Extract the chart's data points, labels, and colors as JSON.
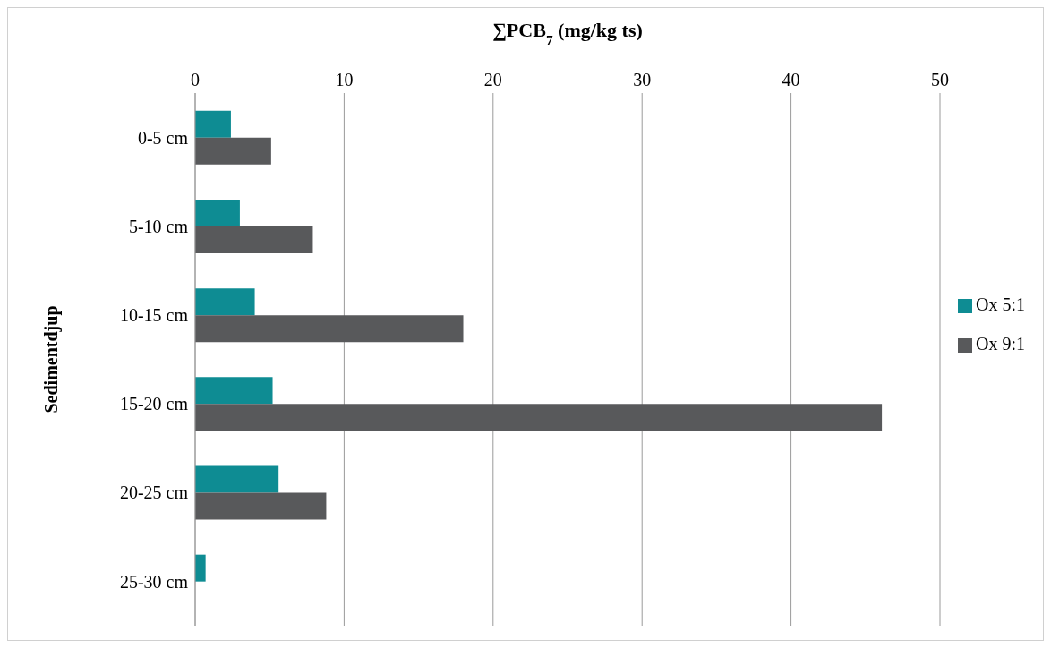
{
  "chart_data": {
    "type": "bar",
    "orientation": "horizontal",
    "xlabel": "∑PCB$_{7}$ (mg/kg ts)",
    "ylabel": "Sedimentdjup",
    "categories": [
      "0-5 cm",
      "5-10 cm",
      "10-15 cm",
      "15-20 cm",
      "20-25 cm",
      "25-30 cm"
    ],
    "series": [
      {
        "name": "Ox 5:1",
        "color": "#0e8c93",
        "values": [
          2.4,
          3.0,
          4.0,
          5.2,
          5.6,
          0.7
        ]
      },
      {
        "name": "Ox 9:1",
        "color": "#58595b",
        "values": [
          5.1,
          7.9,
          18.0,
          46.1,
          8.8,
          0
        ]
      }
    ],
    "xlim": [
      0,
      50
    ],
    "xticks": [
      0,
      10,
      20,
      30,
      40,
      50
    ],
    "grid": "x",
    "legend": "right"
  }
}
